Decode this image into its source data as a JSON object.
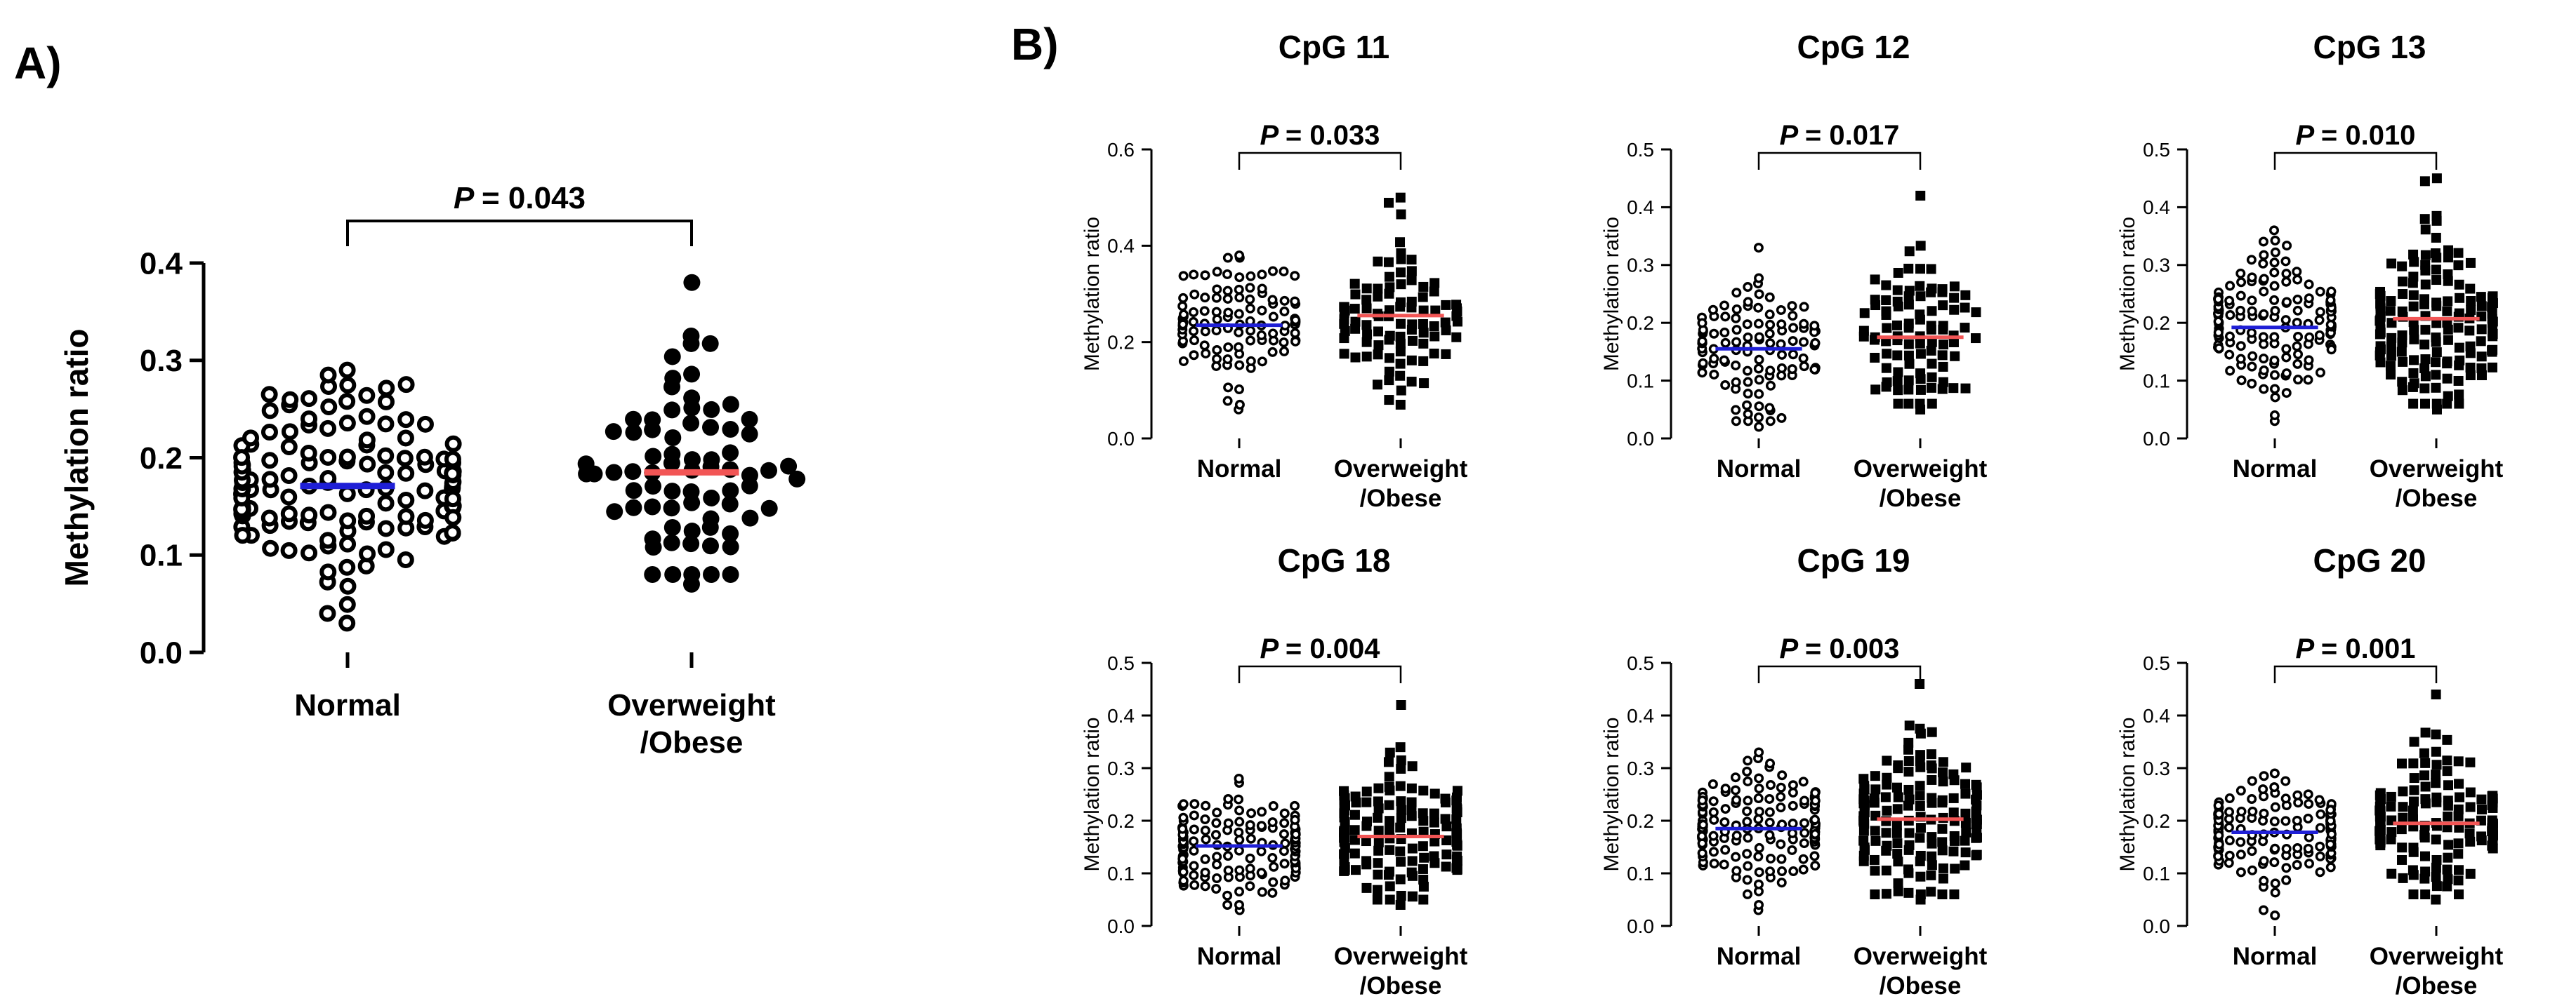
{
  "figure": {
    "panel_a_label": "A)",
    "panel_b_label": "B)"
  },
  "colors": {
    "normal_mean": "#1f1fd6",
    "overweight_mean": "#f25555",
    "marker": "#000000"
  },
  "chart_data": [
    {
      "id": "overall",
      "type": "scatter",
      "title": "",
      "panel": "A",
      "ylabel": "Methylation ratio",
      "xlabel": "",
      "ylim": [
        0.0,
        0.4
      ],
      "yticks": [
        "0.0",
        "0.1",
        "0.2",
        "0.3",
        "0.4"
      ],
      "categories": [
        "Normal",
        "Overweight\n/Obese"
      ],
      "p_label": "P",
      "p_value": "= 0.043",
      "marker_style": [
        "open-circle",
        "filled-circle"
      ],
      "series": [
        {
          "name": "Normal",
          "mean": 0.171,
          "min": 0.03,
          "max": 0.29,
          "n": 140
        },
        {
          "name": "Overweight/Obese",
          "mean": 0.185,
          "min": 0.07,
          "max": 0.38,
          "n": 75
        }
      ]
    },
    {
      "id": "cpg11",
      "type": "scatter",
      "title": "CpG 11",
      "panel": "B",
      "ylabel": "Methylation ratio",
      "ylim": [
        0.0,
        0.6
      ],
      "yticks": [
        "0.0",
        "0.2",
        "0.4",
        "0.6"
      ],
      "categories": [
        "Normal",
        "Overweight\n/Obese"
      ],
      "p_label": "P",
      "p_value": "= 0.033",
      "marker_style": [
        "open-circle",
        "filled-square"
      ],
      "series": [
        {
          "name": "Normal",
          "mean": 0.235,
          "min": 0.06,
          "max": 0.38,
          "n": 110
        },
        {
          "name": "Overweight/Obese",
          "mean": 0.255,
          "min": 0.07,
          "max": 0.5,
          "n": 95
        }
      ]
    },
    {
      "id": "cpg12",
      "type": "scatter",
      "title": "CpG 12",
      "panel": "B",
      "ylabel": "Methylation ratio",
      "ylim": [
        0.0,
        0.5
      ],
      "yticks": [
        "0.0",
        "0.1",
        "0.2",
        "0.3",
        "0.4",
        "0.5"
      ],
      "categories": [
        "Normal",
        "Overweight\n/Obese"
      ],
      "p_label": "P",
      "p_value": "= 0.017",
      "marker_style": [
        "open-circle",
        "filled-square"
      ],
      "series": [
        {
          "name": "Normal",
          "mean": 0.155,
          "min": 0.02,
          "max": 0.33,
          "n": 110
        },
        {
          "name": "Overweight/Obese",
          "mean": 0.175,
          "min": 0.05,
          "max": 0.42,
          "n": 95
        }
      ]
    },
    {
      "id": "cpg13",
      "type": "scatter",
      "title": "CpG 13",
      "panel": "B",
      "ylabel": "Methylation ratio",
      "ylim": [
        0.0,
        0.5
      ],
      "yticks": [
        "0.0",
        "0.1",
        "0.2",
        "0.3",
        "0.4",
        "0.5"
      ],
      "categories": [
        "Normal",
        "Overweight\n/Obese"
      ],
      "p_label": "P",
      "p_value": "= 0.010",
      "marker_style": [
        "open-circle",
        "filled-square"
      ],
      "series": [
        {
          "name": "Normal",
          "mean": 0.192,
          "min": 0.03,
          "max": 0.36,
          "n": 150
        },
        {
          "name": "Overweight/Obese",
          "mean": 0.207,
          "min": 0.05,
          "max": 0.45,
          "n": 150
        }
      ]
    },
    {
      "id": "cpg18",
      "type": "scatter",
      "title": "CpG 18",
      "panel": "B",
      "ylabel": "Methylation ratio",
      "ylim": [
        0.0,
        0.5
      ],
      "yticks": [
        "0.0",
        "0.1",
        "0.2",
        "0.3",
        "0.4",
        "0.5"
      ],
      "categories": [
        "Normal",
        "Overweight\n/Obese"
      ],
      "p_label": "P",
      "p_value": "= 0.004",
      "marker_style": [
        "open-circle",
        "filled-square"
      ],
      "series": [
        {
          "name": "Normal",
          "mean": 0.152,
          "min": 0.03,
          "max": 0.28,
          "n": 150
        },
        {
          "name": "Overweight/Obese",
          "mean": 0.17,
          "min": 0.04,
          "max": 0.42,
          "n": 150
        }
      ]
    },
    {
      "id": "cpg19",
      "type": "scatter",
      "title": "CpG 19",
      "panel": "B",
      "ylabel": "Methylation ratio",
      "ylim": [
        0.0,
        0.5
      ],
      "yticks": [
        "0.0",
        "0.1",
        "0.2",
        "0.3",
        "0.4",
        "0.5"
      ],
      "categories": [
        "Normal",
        "Overweight\n/Obese"
      ],
      "p_label": "P",
      "p_value": "= 0.003",
      "marker_style": [
        "open-circle",
        "filled-square"
      ],
      "series": [
        {
          "name": "Normal",
          "mean": 0.185,
          "min": 0.03,
          "max": 0.33,
          "n": 150
        },
        {
          "name": "Overweight/Obese",
          "mean": 0.203,
          "min": 0.05,
          "max": 0.46,
          "n": 150
        }
      ]
    },
    {
      "id": "cpg20",
      "type": "scatter",
      "title": "CpG 20",
      "panel": "B",
      "ylabel": "Methylation ratio",
      "ylim": [
        0.0,
        0.5
      ],
      "yticks": [
        "0.0",
        "0.1",
        "0.2",
        "0.3",
        "0.4",
        "0.5"
      ],
      "categories": [
        "Normal",
        "Overweight\n/Obese"
      ],
      "p_label": "P",
      "p_value": "= 0.001",
      "marker_style": [
        "open-circle",
        "filled-square"
      ],
      "series": [
        {
          "name": "Normal",
          "mean": 0.178,
          "min": 0.02,
          "max": 0.29,
          "n": 150
        },
        {
          "name": "Overweight/Obese",
          "mean": 0.195,
          "min": 0.05,
          "max": 0.44,
          "n": 150
        }
      ]
    }
  ]
}
